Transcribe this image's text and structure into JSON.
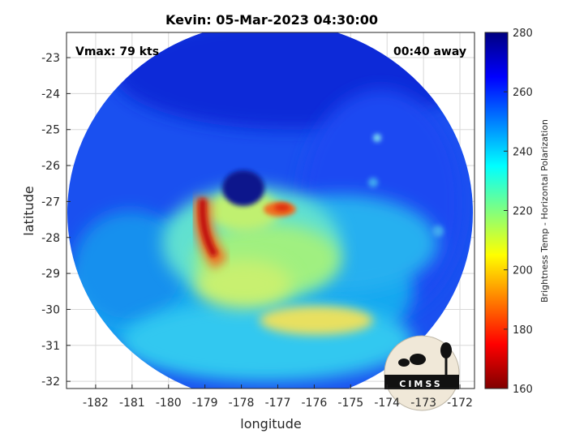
{
  "title": "Kevin: 05-Mar-2023 04:30:00",
  "vmax_label": "Vmax: 79 kts",
  "time_away_label": "00:40 away",
  "xlabel": "longitude",
  "ylabel": "latitude",
  "logo_text": "CIMSS",
  "colorbar": {
    "label": "Brightness Temp - Horizontal Polarization",
    "min": 160,
    "max": 280,
    "ticks": [
      160,
      180,
      200,
      220,
      240,
      260,
      280
    ],
    "colormap": "jet"
  },
  "map": {
    "x_ticks": [
      -182,
      -181,
      -180,
      -179,
      -178,
      -177,
      -176,
      -175,
      -174,
      -173,
      -172
    ],
    "y_ticks": [
      -23,
      -24,
      -25,
      -26,
      -27,
      -28,
      -29,
      -30,
      -31,
      -32
    ],
    "x_range": [
      -182.8,
      -171.6
    ],
    "y_range": [
      -32.2,
      -22.3
    ],
    "grid": true,
    "eye_center": {
      "lon": -177.8,
      "lat": -26.7
    },
    "swath_center": {
      "lon": -177.3,
      "lat": -27.5
    }
  }
}
